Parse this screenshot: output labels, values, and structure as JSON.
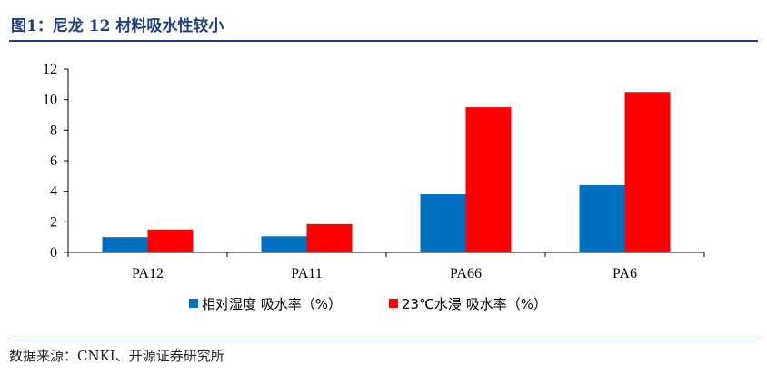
{
  "header": {
    "title": "图1：尼龙 12 材料吸水性较小"
  },
  "source": {
    "text": "数据来源：CNKI、开源证券研究所"
  },
  "colors": {
    "brand": "#1f3f7f",
    "series1": "#0070c0",
    "series2": "#ff0000"
  },
  "chart_data": {
    "type": "bar",
    "categories": [
      "PA12",
      "PA11",
      "PA66",
      "PA6"
    ],
    "series": [
      {
        "name": "相对湿度 吸水率（%）",
        "values": [
          1.0,
          1.05,
          3.8,
          4.4
        ]
      },
      {
        "name": "23℃水浸 吸水率（%）",
        "values": [
          1.5,
          1.85,
          9.5,
          10.5
        ]
      }
    ],
    "yticks": [
      "0",
      "2",
      "4",
      "6",
      "8",
      "10",
      "12"
    ],
    "ylim": [
      0,
      12
    ],
    "grid": false,
    "legend_position": "bottom"
  }
}
